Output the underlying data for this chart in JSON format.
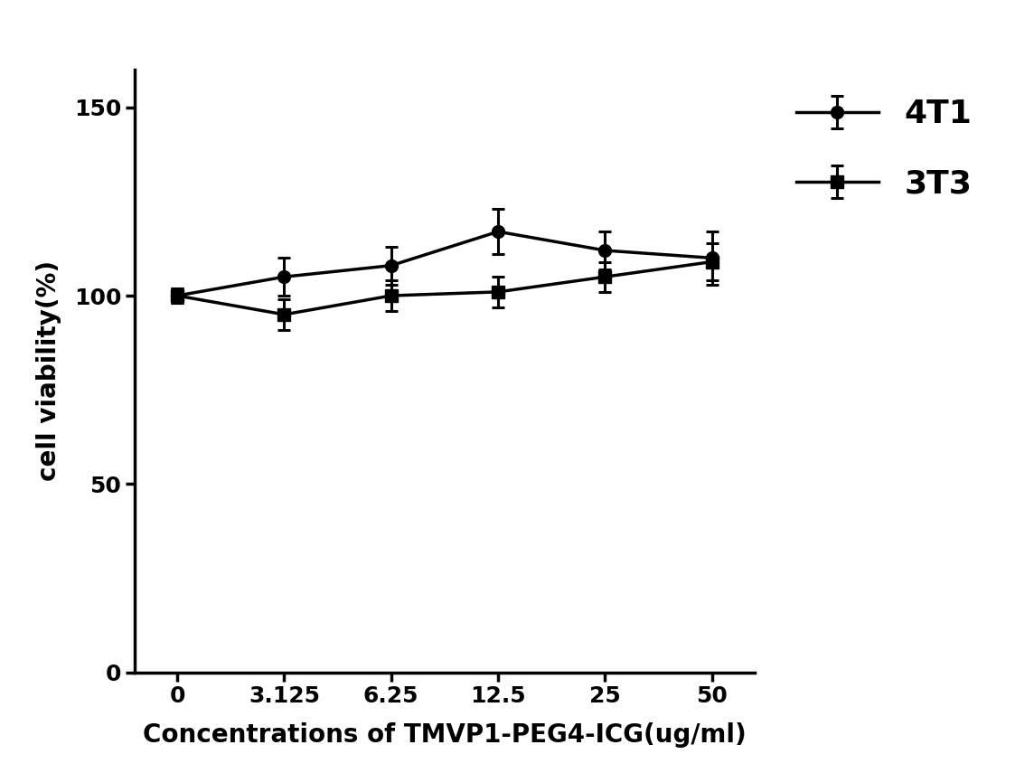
{
  "x_values": [
    0,
    3.125,
    6.25,
    12.5,
    25,
    50
  ],
  "x_labels": [
    "0",
    "3.125",
    "6.25",
    "12.5",
    "25",
    "50"
  ],
  "series_4T1": {
    "y": [
      100,
      105,
      108,
      117,
      112,
      110
    ],
    "yerr": [
      2,
      5,
      5,
      6,
      5,
      7
    ],
    "label": "4T1",
    "color": "#000000",
    "marker": "o",
    "markersize": 10,
    "linewidth": 2.5
  },
  "series_3T3": {
    "y": [
      100,
      95,
      100,
      101,
      105,
      109
    ],
    "yerr": [
      2,
      4,
      4,
      4,
      4,
      5
    ],
    "label": "3T3",
    "color": "#000000",
    "marker": "s",
    "markersize": 10,
    "linewidth": 2.5
  },
  "xlabel": "Concentrations of TMVP1-PEG4-ICG(ug/ml)",
  "ylabel": "cell viability(%)",
  "ylim": [
    0,
    160
  ],
  "yticks": [
    0,
    50,
    100,
    150
  ],
  "background_color": "#ffffff",
  "label_fontsize": 20,
  "tick_fontsize": 18,
  "legend_fontsize": 26,
  "capsize": 5,
  "elinewidth": 2.2,
  "spine_linewidth": 2.5
}
